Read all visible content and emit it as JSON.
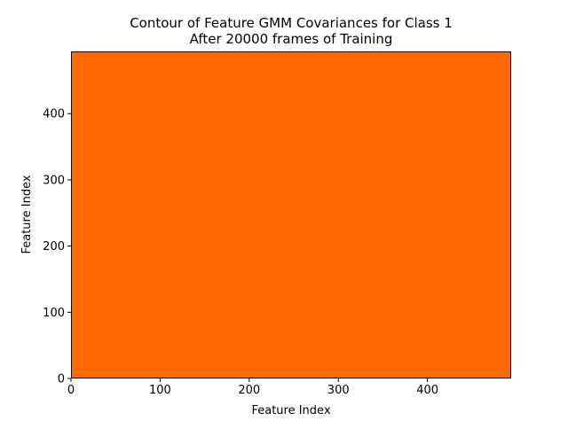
{
  "chart_data": {
    "type": "heatmap",
    "title_lines": [
      "Contour of Feature GMM Covariances for Class 1",
      "After 20000 frames of Training"
    ],
    "xlabel": "Feature Index",
    "ylabel": "Feature Index",
    "xlim": [
      0,
      494
    ],
    "ylim": [
      0,
      494
    ],
    "xticks": [
      0,
      100,
      200,
      300,
      400
    ],
    "yticks": [
      0,
      100,
      200,
      300,
      400
    ],
    "fill_color": "#ff6a00",
    "grid": false,
    "legend": "none"
  }
}
